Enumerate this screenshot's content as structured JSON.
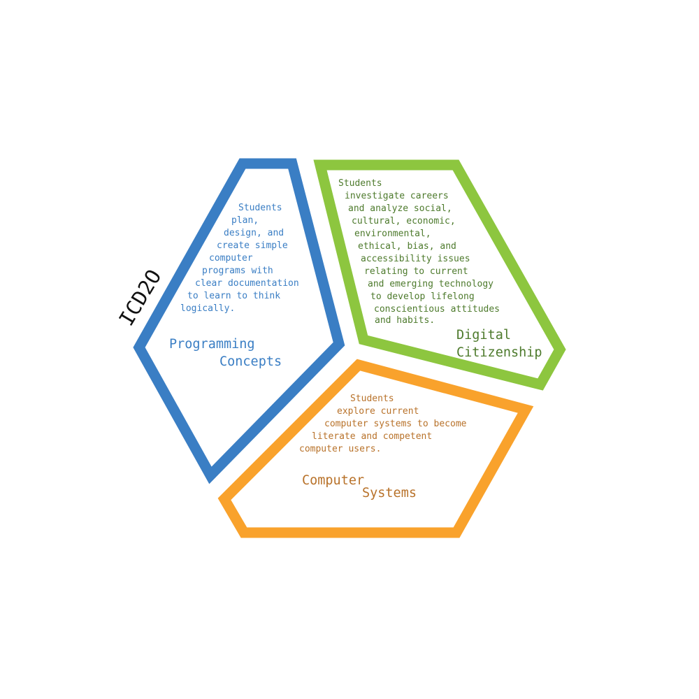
{
  "course_code": "ICD2O",
  "colors": {
    "programming": "#3a7ec4",
    "citizenship": "#8dc63f",
    "citizenship_text": "#4d7a2c",
    "systems": "#f9a22c",
    "systems_text": "#b8722a",
    "course": "#111111"
  },
  "sections": {
    "programming": {
      "title_lines": [
        "Programming",
        "Concepts"
      ],
      "description_lines": [
        "Students",
        "plan,",
        "design, and",
        "create simple",
        "computer",
        "programs with",
        "clear documentation",
        "to learn to think",
        "logically."
      ]
    },
    "citizenship": {
      "title_lines": [
        "Digital",
        "Citizenship"
      ],
      "description_lines": [
        "Students",
        "investigate careers",
        "and analyze social,",
        "cultural, economic,",
        "environmental,",
        "ethical, bias, and",
        "accessibility issues",
        "relating to current",
        "and emerging technology",
        "to develop lifelong",
        "conscientious attitudes",
        "and habits."
      ]
    },
    "systems": {
      "title_lines": [
        "Computer",
        "Systems"
      ],
      "description_lines": [
        "Students",
        "explore current",
        "computer systems to become",
        "literate and competent",
        "computer users."
      ]
    }
  }
}
